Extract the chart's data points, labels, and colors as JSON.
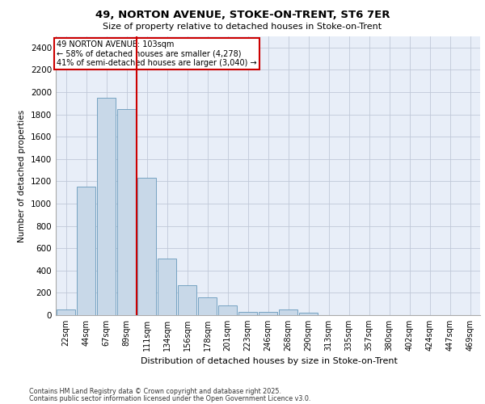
{
  "title1": "49, NORTON AVENUE, STOKE-ON-TRENT, ST6 7ER",
  "title2": "Size of property relative to detached houses in Stoke-on-Trent",
  "xlabel": "Distribution of detached houses by size in Stoke-on-Trent",
  "ylabel": "Number of detached properties",
  "categories": [
    "22sqm",
    "44sqm",
    "67sqm",
    "89sqm",
    "111sqm",
    "134sqm",
    "156sqm",
    "178sqm",
    "201sqm",
    "223sqm",
    "246sqm",
    "268sqm",
    "290sqm",
    "313sqm",
    "335sqm",
    "357sqm",
    "380sqm",
    "402sqm",
    "424sqm",
    "447sqm",
    "469sqm"
  ],
  "values": [
    50,
    1150,
    1950,
    1850,
    1230,
    510,
    270,
    160,
    85,
    30,
    30,
    50,
    20,
    0,
    0,
    0,
    0,
    0,
    0,
    0,
    0
  ],
  "bar_color": "#c8d8e8",
  "bar_edge_color": "#6699bb",
  "vline_x": 3.5,
  "vline_color": "#cc0000",
  "annotation_text": "49 NORTON AVENUE: 103sqm\n← 58% of detached houses are smaller (4,278)\n41% of semi-detached houses are larger (3,040) →",
  "annotation_box_color": "#ffffff",
  "annotation_box_edge": "#cc0000",
  "ylim": [
    0,
    2500
  ],
  "yticks": [
    0,
    200,
    400,
    600,
    800,
    1000,
    1200,
    1400,
    1600,
    1800,
    2000,
    2200,
    2400
  ],
  "grid_color": "#c0c8d8",
  "bg_color": "#e8eef8",
  "footer1": "Contains HM Land Registry data © Crown copyright and database right 2025.",
  "footer2": "Contains public sector information licensed under the Open Government Licence v3.0."
}
